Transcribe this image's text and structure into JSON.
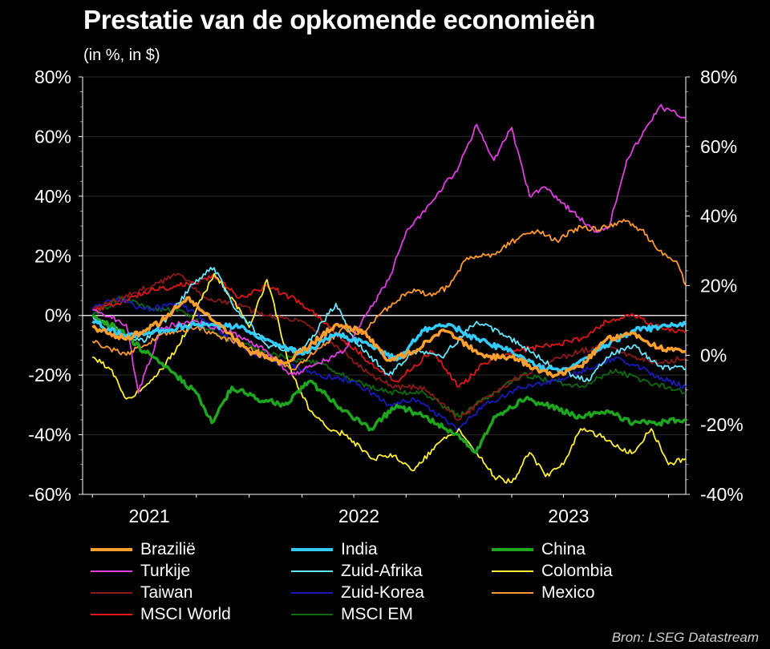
{
  "title": "Prestatie van de opkomende economieën",
  "subtitle": "(in %, in $)",
  "source": "Bron: LSEG Datastream",
  "chart_data": {
    "type": "line",
    "xlim": [
      "2020-12-15",
      "2023-10-31"
    ],
    "ylim": [
      -60,
      80
    ],
    "yticks": [
      "80%",
      "60%",
      "40%",
      "20%",
      "0%",
      "-20%",
      "-40%",
      "-60%"
    ],
    "y2lim": [
      -40,
      80
    ],
    "y2ticks": [
      "80%",
      "60%",
      "40%",
      "20%",
      "0%",
      "-20%",
      "-40%"
    ],
    "xticks": [
      "2021",
      "2022",
      "2023"
    ],
    "right_axis_series": "Mexico",
    "legend_position": "bottom",
    "series": [
      {
        "name": "Brazilië",
        "color": "#ff9f2e",
        "width": 3.5,
        "x": [
          "2021-01-01",
          "2021-03-01",
          "2021-05-01",
          "2021-06-15",
          "2021-08-01",
          "2021-10-01",
          "2021-12-01",
          "2022-01-15",
          "2022-03-01",
          "2022-04-15",
          "2022-06-01",
          "2022-07-15",
          "2022-09-01",
          "2022-10-01",
          "2022-11-15",
          "2023-01-01",
          "2023-02-15",
          "2023-03-20",
          "2023-05-01",
          "2023-06-15",
          "2023-08-01",
          "2023-09-15",
          "2023-10-31"
        ],
        "y": [
          -4,
          -8,
          -2,
          6,
          -2,
          -12,
          -16,
          -10,
          -3,
          -5,
          -15,
          -12,
          -5,
          -8,
          -14,
          -14,
          -18,
          -20,
          -17,
          -8,
          -6,
          -11,
          -12
        ]
      },
      {
        "name": "India",
        "color": "#33ccff",
        "width": 3.5,
        "x": [
          "2021-01-01",
          "2021-03-01",
          "2021-05-01",
          "2021-07-01",
          "2021-09-15",
          "2021-11-01",
          "2022-01-01",
          "2022-03-01",
          "2022-05-01",
          "2022-06-15",
          "2022-08-01",
          "2022-09-15",
          "2022-11-01",
          "2023-01-01",
          "2023-02-15",
          "2023-03-25",
          "2023-05-01",
          "2023-06-15",
          "2023-08-01",
          "2023-09-15",
          "2023-10-31"
        ],
        "y": [
          -2,
          -7,
          -5,
          -3,
          -4,
          -8,
          -13,
          -6,
          -10,
          -15,
          -5,
          -3,
          -8,
          -12,
          -17,
          -19,
          -15,
          -10,
          -5,
          -4,
          -3
        ]
      },
      {
        "name": "China",
        "color": "#1fa61f",
        "width": 3.5,
        "x": [
          "2021-01-01",
          "2021-02-20",
          "2021-04-01",
          "2021-05-15",
          "2021-07-01",
          "2021-07-28",
          "2021-09-01",
          "2021-10-15",
          "2021-12-01",
          "2022-01-15",
          "2022-03-15",
          "2022-05-01",
          "2022-06-15",
          "2022-08-01",
          "2022-10-01",
          "2022-10-31",
          "2022-12-01",
          "2023-01-25",
          "2023-03-01",
          "2023-05-01",
          "2023-06-15",
          "2023-08-01",
          "2023-09-15",
          "2023-10-31"
        ],
        "y": [
          0,
          -5,
          -12,
          -18,
          -26,
          -36,
          -24,
          -28,
          -30,
          -22,
          -32,
          -38,
          -30,
          -34,
          -40,
          -46,
          -34,
          -28,
          -30,
          -34,
          -32,
          -36,
          -36,
          -35
        ]
      },
      {
        "name": "Turkije",
        "color": "#e040e0",
        "width": 1.8,
        "x": [
          "2021-01-01",
          "2021-03-01",
          "2021-03-22",
          "2021-05-01",
          "2021-07-01",
          "2021-09-01",
          "2021-11-01",
          "2021-12-15",
          "2022-02-01",
          "2022-03-15",
          "2022-04-15",
          "2022-06-01",
          "2022-07-01",
          "2022-08-15",
          "2022-10-01",
          "2022-11-01",
          "2022-12-01",
          "2023-01-01",
          "2023-02-01",
          "2023-03-01",
          "2023-04-15",
          "2023-05-25",
          "2023-06-20",
          "2023-07-20",
          "2023-08-15",
          "2023-09-15",
          "2023-10-31"
        ],
        "y": [
          2,
          -3,
          -26,
          -4,
          -2,
          -6,
          -12,
          -20,
          -16,
          -12,
          -2,
          12,
          28,
          38,
          50,
          64,
          52,
          63,
          40,
          43,
          35,
          28,
          30,
          52,
          60,
          70,
          66
        ]
      },
      {
        "name": "Zuid-Afrika",
        "color": "#66e6ff",
        "width": 1.8,
        "x": [
          "2021-01-01",
          "2021-02-15",
          "2021-04-01",
          "2021-05-15",
          "2021-07-01",
          "2021-08-01",
          "2021-09-01",
          "2021-11-01",
          "2022-01-01",
          "2022-03-01",
          "2022-04-01",
          "2022-06-01",
          "2022-07-15",
          "2022-09-01",
          "2022-11-01",
          "2022-12-15",
          "2023-02-01",
          "2023-03-20",
          "2023-05-15",
          "2023-06-15",
          "2023-08-01",
          "2023-09-15",
          "2023-10-31"
        ],
        "y": [
          0,
          -5,
          -9,
          0,
          12,
          16,
          4,
          -10,
          -12,
          4,
          -8,
          -20,
          -12,
          -14,
          -2,
          -6,
          -12,
          -18,
          -22,
          -14,
          -10,
          -17,
          -18
        ]
      },
      {
        "name": "Colombia",
        "color": "#ffef3a",
        "width": 1.8,
        "x": [
          "2021-01-01",
          "2021-02-01",
          "2021-03-01",
          "2021-04-01",
          "2021-05-01",
          "2021-06-01",
          "2021-07-01",
          "2021-08-01",
          "2021-09-01",
          "2021-10-01",
          "2021-11-01",
          "2021-12-15",
          "2022-01-15",
          "2022-02-15",
          "2022-03-20",
          "2022-05-01",
          "2022-06-10",
          "2022-07-15",
          "2022-08-15",
          "2022-10-01",
          "2022-11-01",
          "2022-12-01",
          "2023-01-01",
          "2023-02-01",
          "2023-03-01",
          "2023-04-01",
          "2023-05-01",
          "2023-06-01",
          "2023-07-01",
          "2023-08-01",
          "2023-09-01",
          "2023-10-01",
          "2023-10-31"
        ],
        "y": [
          -14,
          -18,
          -28,
          -24,
          -18,
          -10,
          2,
          14,
          6,
          -4,
          12,
          -20,
          -32,
          -38,
          -40,
          -48,
          -47,
          -52,
          -45,
          -38,
          -46,
          -54,
          -56,
          -46,
          -54,
          -50,
          -38,
          -40,
          -44,
          -46,
          -38,
          -50,
          -48
        ]
      },
      {
        "name": "Taiwan",
        "color": "#8b1a1a",
        "width": 1.8,
        "x": [
          "2021-01-01",
          "2021-02-20",
          "2021-04-15",
          "2021-06-01",
          "2021-07-15",
          "2021-09-01",
          "2021-11-01",
          "2022-01-01",
          "2022-03-01",
          "2022-05-01",
          "2022-06-15",
          "2022-08-01",
          "2022-10-01",
          "2022-11-01",
          "2023-01-01",
          "2023-03-01",
          "2023-05-01",
          "2023-06-15",
          "2023-08-01",
          "2023-09-15",
          "2023-10-31"
        ],
        "y": [
          2,
          6,
          10,
          14,
          6,
          4,
          0,
          -2,
          -10,
          -20,
          -24,
          -24,
          -35,
          -30,
          -22,
          -16,
          -12,
          -10,
          -14,
          -16,
          -14
        ]
      },
      {
        "name": "Zuid-Korea",
        "color": "#1a1ab8",
        "width": 1.8,
        "x": [
          "2021-01-01",
          "2021-02-15",
          "2021-04-01",
          "2021-06-01",
          "2021-08-01",
          "2021-10-01",
          "2021-12-01",
          "2022-02-01",
          "2022-04-01",
          "2022-06-01",
          "2022-07-15",
          "2022-09-30",
          "2022-11-15",
          "2023-01-15",
          "2023-03-15",
          "2023-05-15",
          "2023-07-01",
          "2023-08-15",
          "2023-10-01",
          "2023-10-31"
        ],
        "y": [
          2,
          6,
          2,
          4,
          -4,
          -12,
          -16,
          -20,
          -22,
          -30,
          -28,
          -38,
          -30,
          -24,
          -22,
          -18,
          -14,
          -18,
          -22,
          -24
        ]
      },
      {
        "name": "Mexico",
        "color": "#ff9933",
        "width": 1.8,
        "x": [
          "2021-01-01",
          "2021-03-01",
          "2021-05-01",
          "2021-07-01",
          "2021-09-01",
          "2021-11-01",
          "2021-12-15",
          "2022-02-01",
          "2022-03-15",
          "2022-04-15",
          "2022-06-01",
          "2022-07-15",
          "2022-08-15",
          "2022-09-15",
          "2022-10-15",
          "2022-12-01",
          "2023-01-15",
          "2023-02-15",
          "2023-03-20",
          "2023-05-01",
          "2023-06-01",
          "2023-07-15",
          "2023-08-15",
          "2023-09-15",
          "2023-10-15",
          "2023-10-31"
        ],
        "y": [
          4,
          0,
          6,
          8,
          4,
          0,
          -4,
          2,
          8,
          6,
          14,
          19,
          17,
          20,
          28,
          29,
          34,
          36,
          33,
          37,
          36,
          39,
          36,
          30,
          27,
          20
        ]
      },
      {
        "name": "MSCI World",
        "color": "#e01818",
        "width": 1.8,
        "x": [
          "2021-01-01",
          "2021-02-15",
          "2021-04-01",
          "2021-06-01",
          "2021-08-01",
          "2021-09-15",
          "2021-11-01",
          "2022-01-01",
          "2022-03-01",
          "2022-05-01",
          "2022-06-15",
          "2022-08-15",
          "2022-10-01",
          "2022-11-15",
          "2023-01-01",
          "2023-03-15",
          "2023-05-01",
          "2023-06-15",
          "2023-08-01",
          "2023-09-15",
          "2023-10-31"
        ],
        "y": [
          2,
          4,
          8,
          10,
          13,
          6,
          10,
          4,
          -6,
          -16,
          -22,
          -12,
          -24,
          -16,
          -12,
          -10,
          -8,
          -2,
          0,
          -4,
          -6
        ]
      },
      {
        "name": "MSCI EM",
        "color": "#0d6b0d",
        "width": 1.8,
        "x": [
          "2021-01-01",
          "2021-02-20",
          "2021-04-15",
          "2021-06-01",
          "2021-08-01",
          "2021-10-01",
          "2021-12-01",
          "2022-02-01",
          "2022-04-01",
          "2022-06-01",
          "2022-08-01",
          "2022-10-01",
          "2022-11-15",
          "2023-01-20",
          "2023-03-15",
          "2023-05-01",
          "2023-07-01",
          "2023-08-15",
          "2023-10-01",
          "2023-10-31"
        ],
        "y": [
          0,
          6,
          2,
          2,
          -6,
          -10,
          -14,
          -16,
          -22,
          -26,
          -26,
          -34,
          -28,
          -20,
          -22,
          -24,
          -18,
          -22,
          -24,
          -26
        ]
      }
    ]
  }
}
